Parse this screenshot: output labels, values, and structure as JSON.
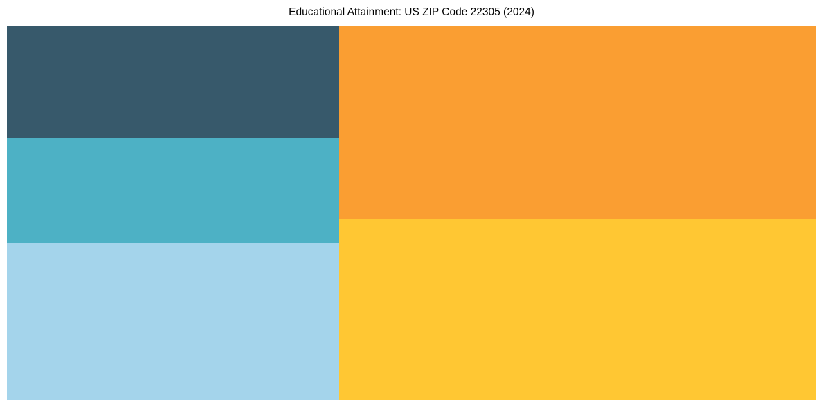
{
  "title": "Educational Attainment: US ZIP Code 22305 (2024)",
  "chart_data": {
    "type": "treemap",
    "title": "Educational Attainment: US ZIP Code 22305 (2024)",
    "legend": "none",
    "tile_labels_visible": false,
    "columns": [
      {
        "side": "left",
        "width_pct": 41.1,
        "segments": [
          {
            "position": "left-top",
            "color": "#37596B",
            "height_pct": 29.8,
            "area_share_pct": 12.2
          },
          {
            "position": "left-middle",
            "color": "#4DB1C5",
            "height_pct": 28.1,
            "area_share_pct": 11.6
          },
          {
            "position": "left-bottom",
            "color": "#A4D4EB",
            "height_pct": 42.1,
            "area_share_pct": 17.3
          }
        ]
      },
      {
        "side": "right",
        "width_pct": 58.9,
        "segments": [
          {
            "position": "right-top",
            "color": "#FA9E32",
            "height_pct": 51.4,
            "area_share_pct": 30.3
          },
          {
            "position": "right-bottom",
            "color": "#FFC733",
            "height_pct": 48.6,
            "area_share_pct": 28.6
          }
        ]
      }
    ],
    "background_color": "#FFFFFF",
    "title_color": "#000000"
  }
}
